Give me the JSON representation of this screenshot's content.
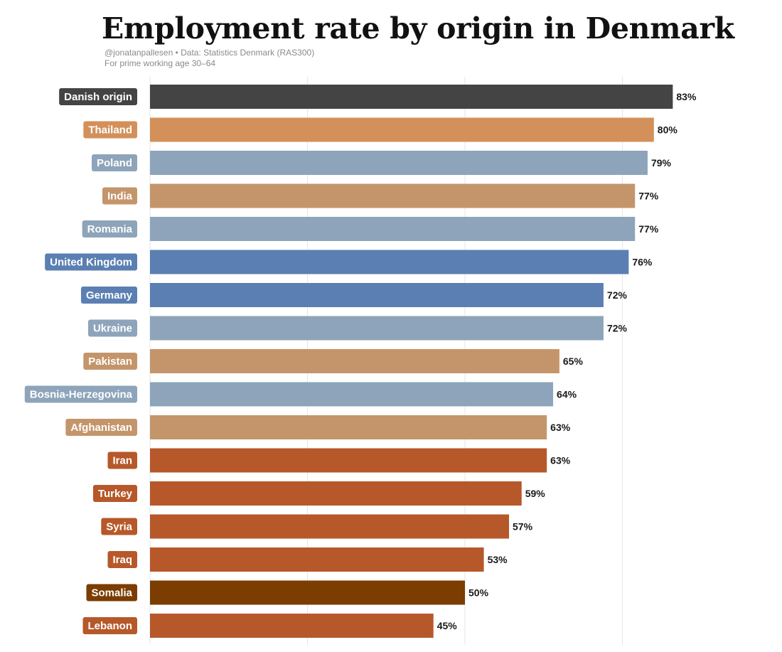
{
  "header": {
    "title": "Employment rate by origin in Denmark",
    "source": "@jonatanpallesen • Data: Statistics Denmark (RAS300)",
    "subtitle": "For prime working age 30–64"
  },
  "chart_data": {
    "type": "bar",
    "orientation": "horizontal",
    "title": "Employment rate by origin in Denmark",
    "subtitle": "For prime working age 30–64",
    "xlabel": "",
    "ylabel": "",
    "xlim": [
      0,
      90
    ],
    "grid": true,
    "value_suffix": "%",
    "categories": [
      "Danish origin",
      "Thailand",
      "Poland",
      "India",
      "Romania",
      "United Kingdom",
      "Germany",
      "Ukraine",
      "Pakistan",
      "Bosnia-Herzegovina",
      "Afghanistan",
      "Iran",
      "Turkey",
      "Syria",
      "Iraq",
      "Somalia",
      "Lebanon"
    ],
    "values": [
      83,
      80,
      79,
      77,
      77,
      76,
      72,
      72,
      65,
      64,
      63,
      63,
      59,
      57,
      53,
      50,
      45
    ],
    "value_labels": [
      "83%",
      "80%",
      "79%",
      "77%",
      "77%",
      "76%",
      "72%",
      "72%",
      "65%",
      "64%",
      "63%",
      "63%",
      "59%",
      "57%",
      "53%",
      "50%",
      "45%"
    ],
    "colors": [
      "#444444",
      "#D3905A",
      "#8DA4BA",
      "#C4956B",
      "#8DA4BA",
      "#5B7FB2",
      "#5B7FB2",
      "#8DA4BA",
      "#C4956B",
      "#8DA4BA",
      "#C4956B",
      "#B6582A",
      "#B6582A",
      "#B6582A",
      "#B6582A",
      "#7B3D02",
      "#B6582A"
    ],
    "grid_color": "#e6e6e6"
  }
}
